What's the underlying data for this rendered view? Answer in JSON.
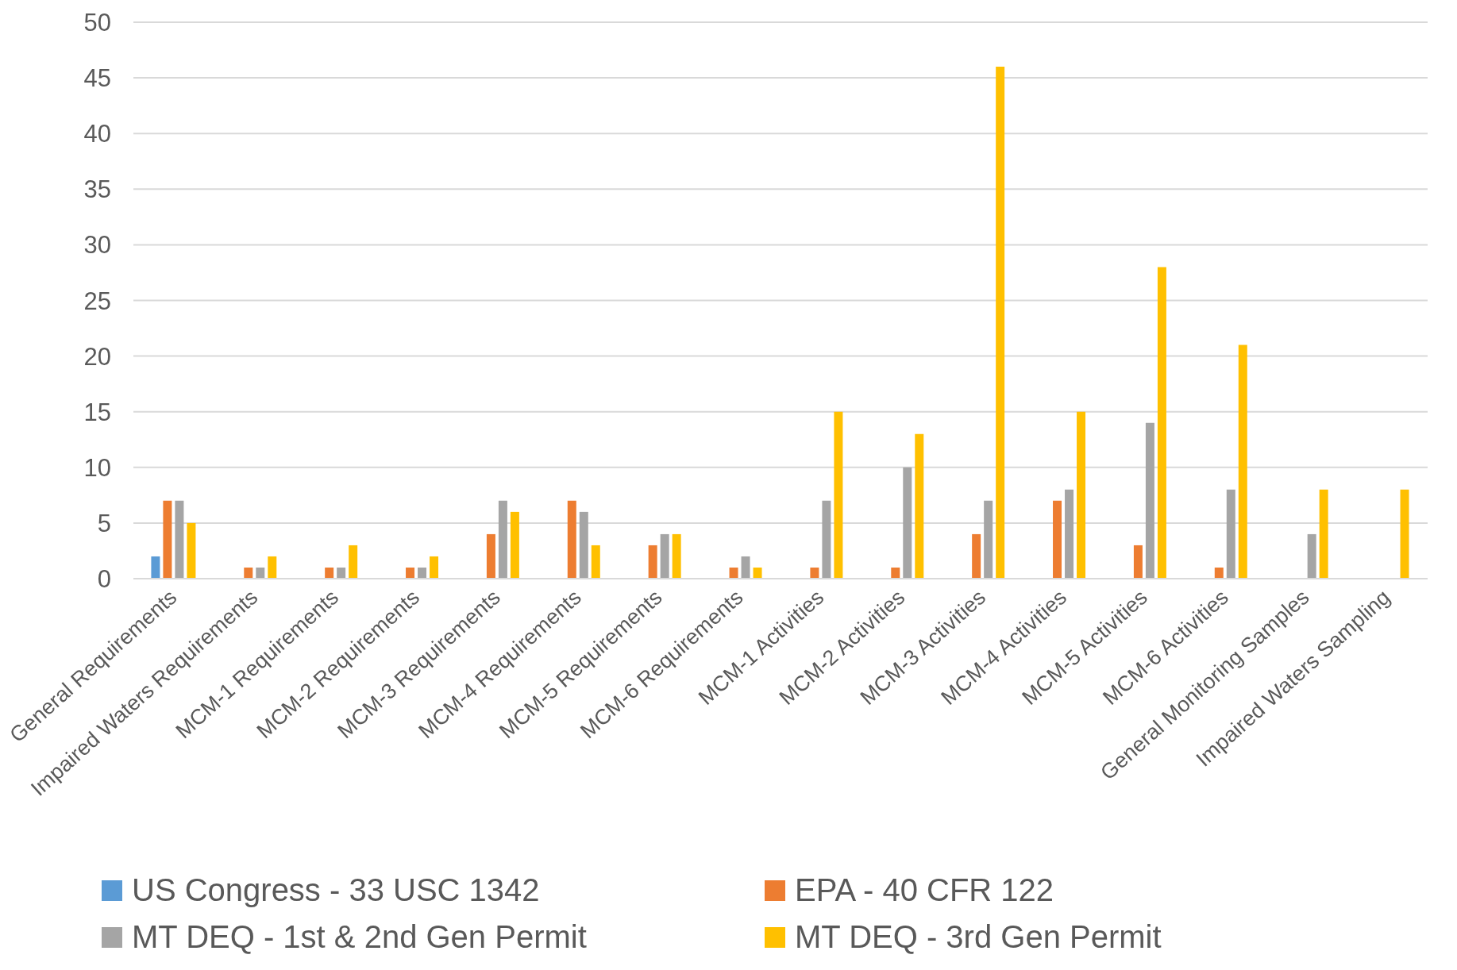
{
  "chart_data": {
    "type": "bar",
    "categories": [
      "General Requirements",
      "Impaired Waters Requirements",
      "MCM-1 Requirements",
      "MCM-2 Requirements",
      "MCM-3 Requirements",
      "MCM-4 Requirements",
      "MCM-5 Requirements",
      "MCM-6 Requirements",
      "MCM-1 Activities",
      "MCM-2 Activities",
      "MCM-3 Activities",
      "MCM-4 Activities",
      "MCM-5 Activities",
      "MCM-6 Activities",
      "General Monitoring Samples",
      "Impaired Waters Sampling"
    ],
    "series": [
      {
        "name": "US Congress - 33 USC 1342",
        "color": "#5b9bd5",
        "values": [
          2,
          null,
          null,
          null,
          null,
          null,
          null,
          null,
          null,
          null,
          null,
          null,
          null,
          null,
          null,
          null
        ]
      },
      {
        "name": "EPA - 40 CFR 122",
        "color": "#ed7d31",
        "values": [
          7,
          1,
          1,
          1,
          4,
          7,
          3,
          1,
          1,
          1,
          4,
          7,
          3,
          1,
          null,
          null
        ]
      },
      {
        "name": "MT DEQ - 1st & 2nd Gen Permit",
        "color": "#a5a5a5",
        "values": [
          7,
          1,
          1,
          1,
          7,
          6,
          4,
          2,
          7,
          10,
          7,
          8,
          14,
          8,
          4,
          null
        ]
      },
      {
        "name": "MT DEQ - 3rd Gen Permit",
        "color": "#ffc000",
        "values": [
          5,
          2,
          3,
          2,
          6,
          3,
          4,
          1,
          15,
          13,
          46,
          15,
          28,
          21,
          8,
          8
        ]
      }
    ],
    "ylim": [
      0,
      50
    ],
    "yticks": [
      0,
      5,
      10,
      15,
      20,
      25,
      30,
      35,
      40,
      45,
      50
    ],
    "grid": "y",
    "legend": "bottom"
  }
}
